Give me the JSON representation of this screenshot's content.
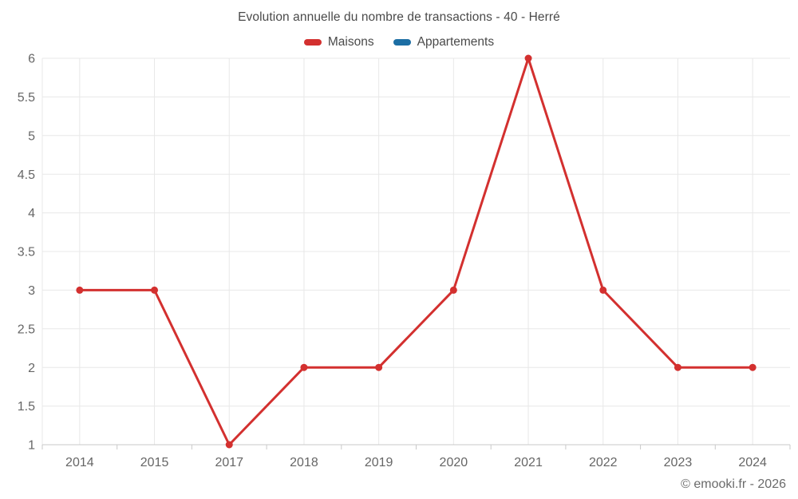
{
  "header": {
    "title": "Evolution annuelle du nombre de transactions - 40 - Herré"
  },
  "legend": [
    {
      "label": "Maisons",
      "color": "#d3302f"
    },
    {
      "label": "Appartements",
      "color": "#1c6ea4"
    }
  ],
  "footer": {
    "credit": "© emooki.fr - 2026"
  },
  "colors": {
    "grid": "#e8e8e8",
    "axis": "#c9c9c9",
    "tick_label": "#666666",
    "title_text": "#4a4a4a",
    "background": "#ffffff"
  },
  "chart_data": {
    "type": "line",
    "title": "Evolution annuelle du nombre de transactions - 40 - Herré",
    "categories": [
      "2014",
      "2015",
      "2017",
      "2018",
      "2019",
      "2020",
      "2021",
      "2022",
      "2023",
      "2024"
    ],
    "series": [
      {
        "name": "Maisons",
        "color": "#d3302f",
        "values": [
          3,
          3,
          1,
          2,
          2,
          3,
          6,
          3,
          2,
          2
        ]
      },
      {
        "name": "Appartements",
        "color": "#1c6ea4",
        "values": []
      }
    ],
    "xlabel": "",
    "ylabel": "",
    "ylim": [
      1,
      6
    ],
    "yticks": [
      1,
      1.5,
      2,
      2.5,
      3,
      3.5,
      4,
      4.5,
      5,
      5.5,
      6
    ],
    "grid": true,
    "legend_position": "top",
    "marker": "circle",
    "marker_radius": 4.5,
    "line_width": 3
  }
}
